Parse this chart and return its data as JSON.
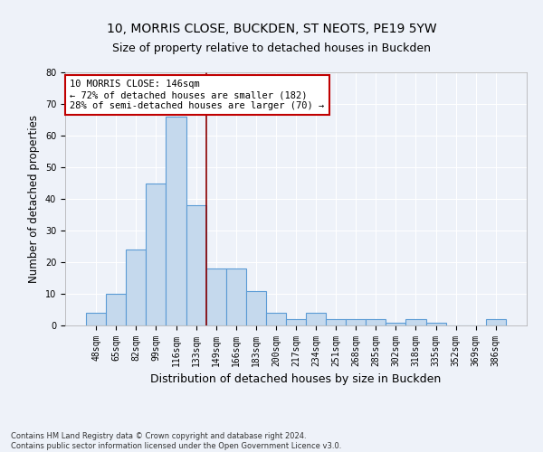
{
  "title1": "10, MORRIS CLOSE, BUCKDEN, ST NEOTS, PE19 5YW",
  "title2": "Size of property relative to detached houses in Buckden",
  "xlabel": "Distribution of detached houses by size in Buckden",
  "ylabel": "Number of detached properties",
  "bar_labels": [
    "48sqm",
    "65sqm",
    "82sqm",
    "99sqm",
    "116sqm",
    "133sqm",
    "149sqm",
    "166sqm",
    "183sqm",
    "200sqm",
    "217sqm",
    "234sqm",
    "251sqm",
    "268sqm",
    "285sqm",
    "302sqm",
    "318sqm",
    "335sqm",
    "352sqm",
    "369sqm",
    "386sqm"
  ],
  "bar_values": [
    4,
    10,
    24,
    45,
    66,
    38,
    18,
    18,
    11,
    4,
    2,
    4,
    2,
    2,
    2,
    1,
    2,
    1,
    0,
    0,
    2
  ],
  "bar_color": "#c5d9ed",
  "bar_edge_color": "#5b9bd5",
  "ylim": [
    0,
    80
  ],
  "yticks": [
    0,
    10,
    20,
    30,
    40,
    50,
    60,
    70,
    80
  ],
  "vline_x": 5.5,
  "vline_color": "#8b0000",
  "annotation_text": "10 MORRIS CLOSE: 146sqm\n← 72% of detached houses are smaller (182)\n28% of semi-detached houses are larger (70) →",
  "annotation_box_color": "#ffffff",
  "annotation_box_edge": "#c00000",
  "footer1": "Contains HM Land Registry data © Crown copyright and database right 2024.",
  "footer2": "Contains public sector information licensed under the Open Government Licence v3.0.",
  "bg_color": "#eef2f9",
  "grid_color": "#ffffff",
  "title1_fontsize": 10,
  "title2_fontsize": 9,
  "axis_label_fontsize": 8.5,
  "tick_fontsize": 7,
  "footer_fontsize": 6,
  "annot_fontsize": 7.5
}
